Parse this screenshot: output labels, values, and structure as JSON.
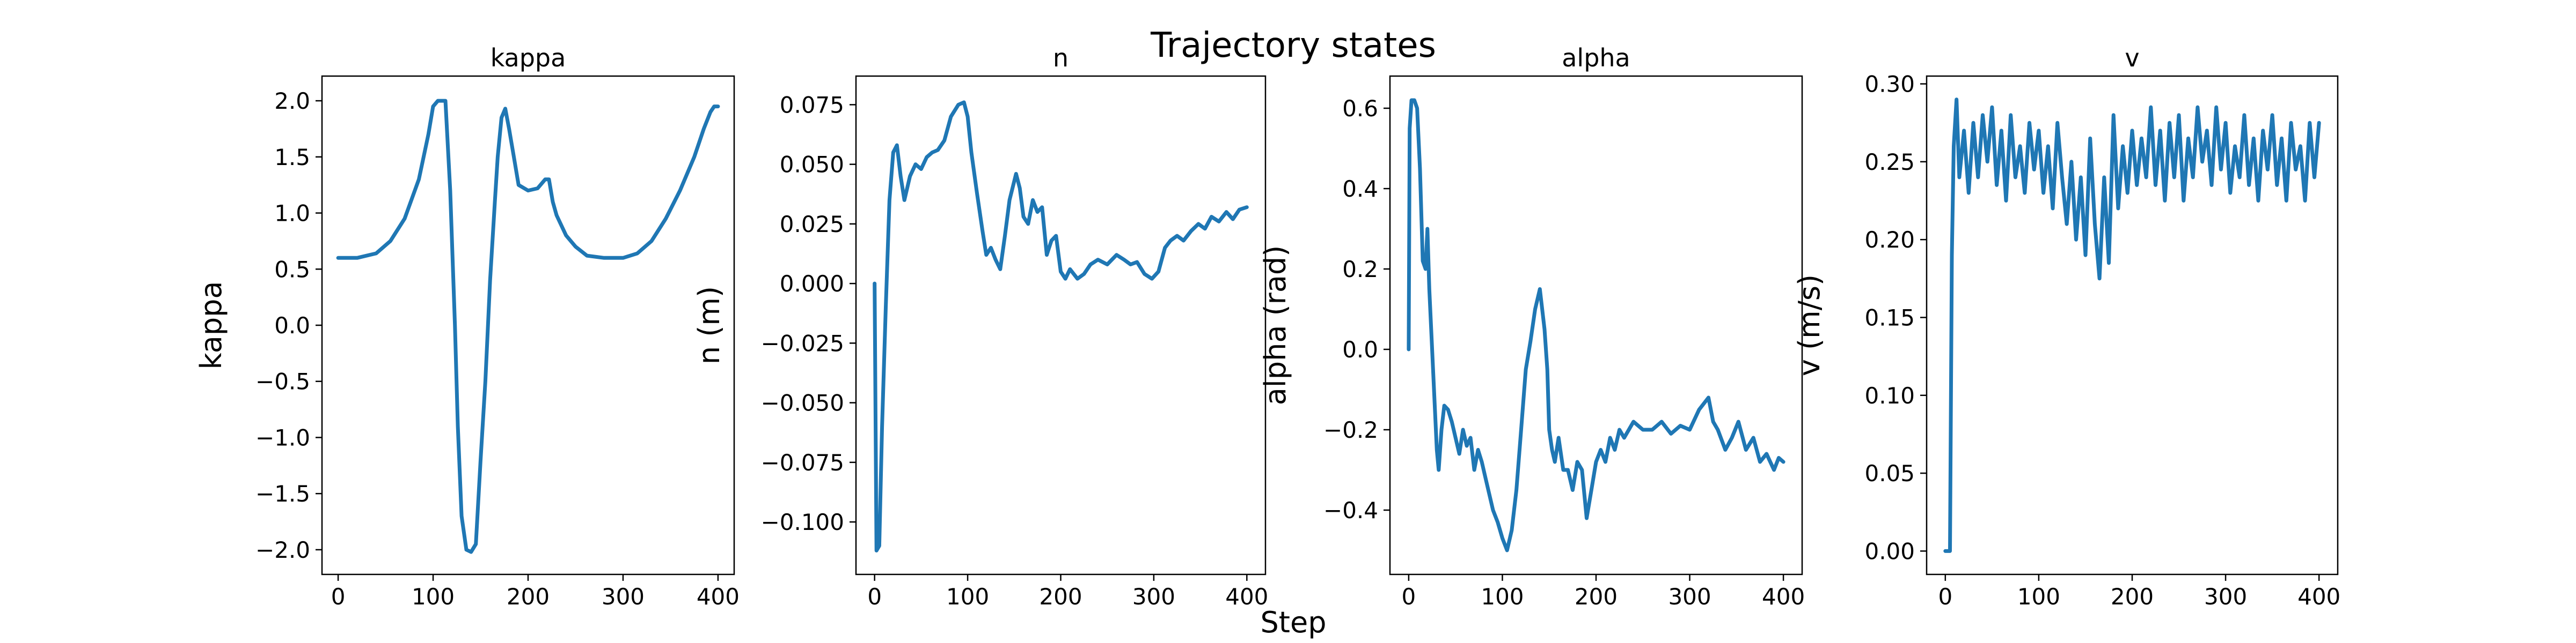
{
  "figure": {
    "suptitle": "Trajectory states",
    "supxlabel": "Step"
  },
  "colors": {
    "series": "#1f77b4"
  },
  "chart_data": [
    {
      "type": "line",
      "title": "kappa",
      "xlabel": "",
      "ylabel": "kappa",
      "xlim": [
        -17,
        417
      ],
      "ylim": [
        -2.22,
        2.22
      ],
      "xticks": [
        0,
        100,
        200,
        300,
        400
      ],
      "xtick_labels": [
        "0",
        "100",
        "200",
        "300",
        "400"
      ],
      "yticks": [
        2.0,
        1.5,
        1.0,
        0.5,
        0.0,
        -0.5,
        -1.0,
        -1.5,
        -2.0
      ],
      "ytick_labels": [
        "2.0",
        "1.5",
        "1.0",
        "0.5",
        "0.0",
        "−0.5",
        "−1.0",
        "−1.5",
        "−2.0"
      ],
      "series": [
        {
          "x": [
            0,
            20,
            40,
            55,
            70,
            85,
            95,
            100,
            105,
            110,
            113,
            118,
            123,
            126,
            130,
            135,
            140,
            145,
            150,
            155,
            160,
            165,
            168,
            172,
            176,
            180,
            185,
            190,
            200,
            210,
            218,
            222,
            226,
            230,
            240,
            250,
            262,
            280,
            300,
            315,
            330,
            345,
            360,
            375,
            385,
            392,
            396,
            400
          ],
          "y": [
            0.6,
            0.6,
            0.64,
            0.75,
            0.95,
            1.3,
            1.7,
            1.95,
            2.0,
            2.0,
            2.0,
            1.2,
            0.0,
            -0.9,
            -1.7,
            -2.0,
            -2.02,
            -1.95,
            -1.2,
            -0.5,
            0.4,
            1.1,
            1.5,
            1.85,
            1.93,
            1.75,
            1.5,
            1.25,
            1.2,
            1.22,
            1.3,
            1.3,
            1.1,
            0.98,
            0.8,
            0.7,
            0.62,
            0.6,
            0.6,
            0.64,
            0.75,
            0.95,
            1.2,
            1.5,
            1.75,
            1.9,
            1.95,
            1.95
          ]
        }
      ]
    },
    {
      "type": "line",
      "title": "n",
      "xlabel": "",
      "ylabel": "n (m)",
      "xlim": [
        -20,
        420
      ],
      "ylim": [
        -0.122,
        0.087
      ],
      "xticks": [
        0,
        100,
        200,
        300,
        400
      ],
      "xtick_labels": [
        "0",
        "100",
        "200",
        "300",
        "400"
      ],
      "yticks": [
        0.075,
        0.05,
        0.025,
        0.0,
        -0.025,
        -0.05,
        -0.075,
        -0.1
      ],
      "ytick_labels": [
        "0.075",
        "0.050",
        "0.025",
        "0.000",
        "−0.025",
        "−0.050",
        "−0.075",
        "−0.100"
      ],
      "series": [
        {
          "x": [
            0,
            2,
            5,
            8,
            12,
            16,
            20,
            24,
            28,
            32,
            38,
            44,
            50,
            56,
            62,
            68,
            75,
            82,
            90,
            96,
            100,
            104,
            110,
            116,
            120,
            125,
            130,
            135,
            140,
            145,
            152,
            156,
            160,
            165,
            170,
            175,
            180,
            185,
            190,
            195,
            200,
            205,
            210,
            218,
            225,
            232,
            240,
            250,
            260,
            268,
            275,
            282,
            290,
            298,
            305,
            312,
            318,
            325,
            332,
            340,
            348,
            355,
            362,
            370,
            378,
            385,
            392,
            400
          ],
          "y": [
            0.0,
            -0.112,
            -0.11,
            -0.06,
            -0.01,
            0.035,
            0.055,
            0.058,
            0.045,
            0.035,
            0.045,
            0.05,
            0.048,
            0.053,
            0.055,
            0.056,
            0.06,
            0.07,
            0.075,
            0.076,
            0.07,
            0.055,
            0.038,
            0.022,
            0.012,
            0.015,
            0.01,
            0.006,
            0.02,
            0.035,
            0.046,
            0.04,
            0.028,
            0.025,
            0.035,
            0.03,
            0.032,
            0.012,
            0.018,
            0.02,
            0.005,
            0.002,
            0.006,
            0.002,
            0.004,
            0.008,
            0.01,
            0.008,
            0.012,
            0.01,
            0.008,
            0.009,
            0.004,
            0.002,
            0.005,
            0.015,
            0.018,
            0.02,
            0.018,
            0.022,
            0.025,
            0.023,
            0.028,
            0.026,
            0.03,
            0.027,
            0.031,
            0.032
          ]
        }
      ]
    },
    {
      "type": "line",
      "title": "alpha",
      "xlabel": "",
      "ylabel": "alpha (rad)",
      "xlim": [
        -20,
        420
      ],
      "ylim": [
        -0.56,
        0.68
      ],
      "xticks": [
        0,
        100,
        200,
        300,
        400
      ],
      "xtick_labels": [
        "0",
        "100",
        "200",
        "300",
        "400"
      ],
      "yticks": [
        0.6,
        0.4,
        0.2,
        0.0,
        -0.2,
        -0.4
      ],
      "ytick_labels": [
        "0.6",
        "0.4",
        "0.2",
        "0.0",
        "−0.2",
        "−0.4"
      ],
      "series": [
        {
          "x": [
            0,
            1,
            3,
            6,
            9,
            12,
            15,
            18,
            20,
            22,
            24,
            26,
            28,
            30,
            32,
            35,
            38,
            42,
            46,
            50,
            54,
            58,
            62,
            66,
            70,
            74,
            78,
            82,
            86,
            90,
            95,
            100,
            105,
            110,
            115,
            120,
            125,
            130,
            135,
            140,
            145,
            148,
            150,
            153,
            156,
            160,
            165,
            170,
            175,
            180,
            185,
            190,
            195,
            200,
            205,
            210,
            215,
            220,
            225,
            230,
            240,
            250,
            260,
            270,
            280,
            290,
            300,
            310,
            320,
            325,
            330,
            338,
            345,
            352,
            360,
            368,
            375,
            382,
            390,
            395,
            400
          ],
          "y": [
            0.0,
            0.55,
            0.62,
            0.62,
            0.6,
            0.45,
            0.22,
            0.2,
            0.3,
            0.15,
            0.05,
            -0.05,
            -0.15,
            -0.25,
            -0.3,
            -0.2,
            -0.14,
            -0.15,
            -0.18,
            -0.22,
            -0.26,
            -0.2,
            -0.24,
            -0.22,
            -0.3,
            -0.25,
            -0.28,
            -0.32,
            -0.36,
            -0.4,
            -0.43,
            -0.47,
            -0.5,
            -0.45,
            -0.35,
            -0.2,
            -0.05,
            0.02,
            0.1,
            0.15,
            0.05,
            -0.05,
            -0.2,
            -0.25,
            -0.28,
            -0.22,
            -0.3,
            -0.3,
            -0.35,
            -0.28,
            -0.3,
            -0.42,
            -0.35,
            -0.28,
            -0.25,
            -0.28,
            -0.22,
            -0.25,
            -0.2,
            -0.22,
            -0.18,
            -0.2,
            -0.2,
            -0.18,
            -0.21,
            -0.19,
            -0.2,
            -0.15,
            -0.12,
            -0.18,
            -0.2,
            -0.25,
            -0.22,
            -0.18,
            -0.25,
            -0.22,
            -0.28,
            -0.26,
            -0.3,
            -0.27,
            -0.28
          ]
        }
      ]
    },
    {
      "type": "line",
      "title": "v",
      "xlabel": "",
      "ylabel": "v (m/s)",
      "xlim": [
        -20,
        420
      ],
      "ylim": [
        -0.015,
        0.305
      ],
      "xticks": [
        0,
        100,
        200,
        300,
        400
      ],
      "xtick_labels": [
        "0",
        "100",
        "200",
        "300",
        "400"
      ],
      "yticks": [
        0.3,
        0.25,
        0.2,
        0.15,
        0.1,
        0.05,
        0.0
      ],
      "ytick_labels": [
        "0.30",
        "0.25",
        "0.20",
        "0.15",
        "0.10",
        "0.05",
        "0.00"
      ],
      "series": [
        {
          "x": [
            0,
            3,
            5,
            7,
            9,
            12,
            15,
            20,
            25,
            30,
            35,
            40,
            45,
            50,
            55,
            60,
            65,
            70,
            75,
            80,
            85,
            90,
            95,
            100,
            105,
            110,
            115,
            120,
            125,
            130,
            135,
            140,
            145,
            150,
            155,
            160,
            165,
            170,
            175,
            180,
            185,
            190,
            195,
            200,
            205,
            210,
            215,
            220,
            225,
            230,
            235,
            240,
            245,
            250,
            255,
            260,
            265,
            270,
            275,
            280,
            285,
            290,
            295,
            300,
            305,
            310,
            315,
            320,
            325,
            330,
            335,
            340,
            345,
            350,
            355,
            360,
            365,
            370,
            375,
            380,
            385,
            390,
            395,
            400
          ],
          "y": [
            0.0,
            0.0,
            0.0,
            0.19,
            0.26,
            0.29,
            0.24,
            0.27,
            0.23,
            0.275,
            0.24,
            0.28,
            0.25,
            0.285,
            0.235,
            0.27,
            0.225,
            0.28,
            0.24,
            0.26,
            0.23,
            0.275,
            0.245,
            0.27,
            0.23,
            0.26,
            0.22,
            0.275,
            0.24,
            0.21,
            0.25,
            0.2,
            0.24,
            0.19,
            0.265,
            0.21,
            0.175,
            0.24,
            0.185,
            0.28,
            0.22,
            0.26,
            0.23,
            0.27,
            0.235,
            0.265,
            0.24,
            0.285,
            0.235,
            0.27,
            0.225,
            0.275,
            0.24,
            0.28,
            0.225,
            0.265,
            0.24,
            0.285,
            0.25,
            0.27,
            0.235,
            0.285,
            0.245,
            0.275,
            0.23,
            0.26,
            0.24,
            0.28,
            0.235,
            0.265,
            0.225,
            0.27,
            0.245,
            0.28,
            0.235,
            0.265,
            0.225,
            0.275,
            0.245,
            0.26,
            0.225,
            0.275,
            0.24,
            0.275
          ]
        }
      ]
    }
  ]
}
